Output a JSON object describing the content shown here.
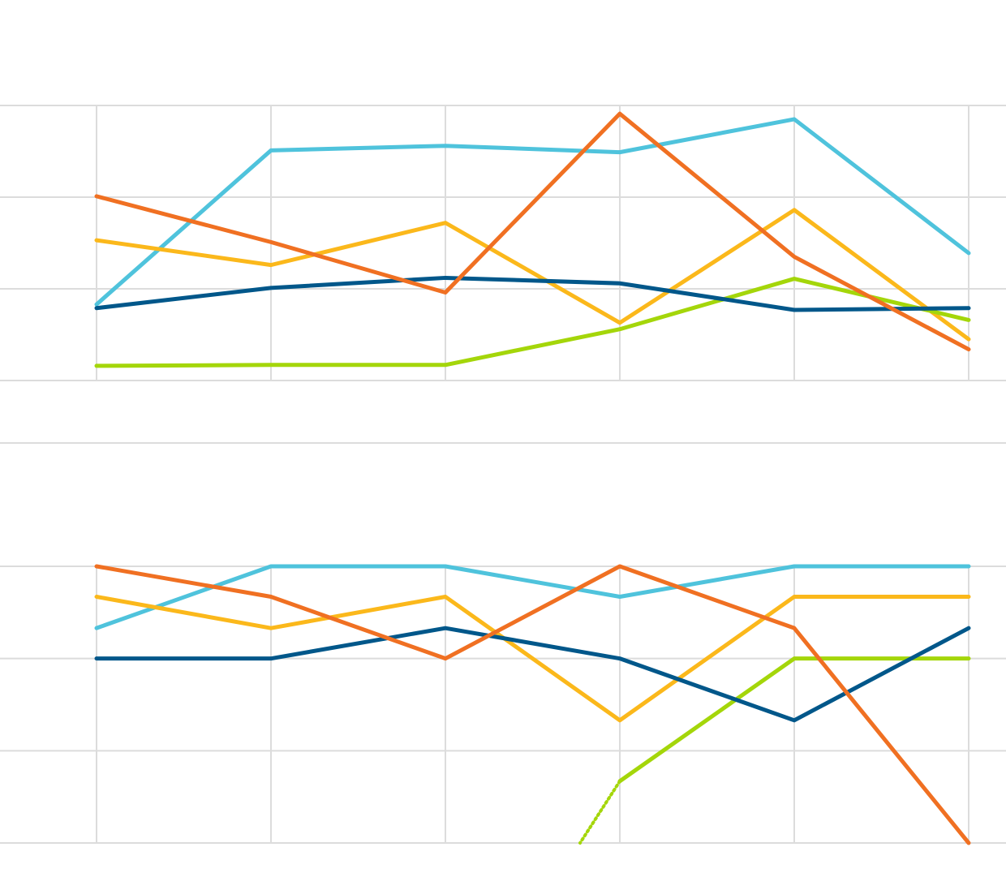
{
  "chart_data": [
    {
      "type": "line",
      "categories": [
        null,
        null,
        null,
        null,
        null,
        null
      ],
      "ylim": [
        0,
        3
      ],
      "yticks": [
        0,
        1,
        2,
        3
      ],
      "grid": true,
      "series": [
        {
          "color": "#4fc3dc",
          "values": [
            0.83,
            2.51,
            2.56,
            2.49,
            2.85,
            1.39
          ]
        },
        {
          "color": "#fbb81b",
          "values": [
            1.53,
            1.26,
            1.72,
            0.63,
            1.86,
            0.45
          ]
        },
        {
          "color": "#a4d60a",
          "values": [
            0.16,
            0.17,
            0.17,
            0.56,
            1.11,
            0.66
          ]
        },
        {
          "color": "#00578a",
          "values": [
            0.79,
            1.01,
            1.12,
            1.06,
            0.77,
            0.79
          ]
        },
        {
          "color": "#f07022",
          "values": [
            2.01,
            1.51,
            0.96,
            2.91,
            1.35,
            0.34
          ]
        }
      ]
    },
    {
      "type": "line",
      "categories": [
        null,
        null,
        null,
        null,
        null,
        null
      ],
      "ylim": [
        0,
        3
      ],
      "yticks": [
        0,
        1,
        2,
        3
      ],
      "grid": true,
      "series": [
        {
          "color": "#4fc3dc",
          "values": [
            2.33,
            3,
            3,
            2.67,
            3,
            3
          ]
        },
        {
          "color": "#fbb81b",
          "values": [
            2.67,
            2.33,
            2.67,
            1.33,
            2.67,
            2.67
          ]
        },
        {
          "color": "#a4d60a",
          "values": [
            null,
            null,
            null,
            0.67,
            2,
            2
          ]
        },
        {
          "color": "#00578a",
          "values": [
            2,
            2,
            2.33,
            2,
            1.33,
            2.33
          ]
        },
        {
          "color": "#f07022",
          "values": [
            3,
            2.67,
            2,
            3,
            2.33,
            0
          ]
        }
      ]
    }
  ]
}
